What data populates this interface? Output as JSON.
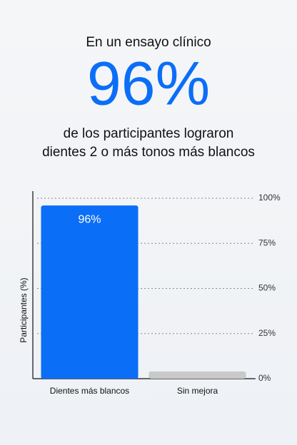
{
  "header": {
    "intro": "En un ensayo clínico",
    "stat": "96%",
    "lines": [
      "de los participantes lograron",
      "dientes 2 o más tonos más blancos"
    ]
  },
  "chart_data": {
    "type": "bar",
    "y_label": "Participantes (%)",
    "categories": [
      "Dientes más blancos",
      "Sin mejora"
    ],
    "values": [
      96,
      4
    ],
    "value_labels": [
      "96%",
      null
    ],
    "colors": [
      "#0b6ef6",
      "#c9c9c9"
    ],
    "ylim": [
      0,
      100
    ],
    "yticks": [
      {
        "value": 0,
        "label": "0%"
      },
      {
        "value": 25,
        "label": "25%"
      },
      {
        "value": 50,
        "label": "50%"
      },
      {
        "value": 75,
        "label": "75%"
      },
      {
        "value": 100,
        "label": "100%"
      }
    ],
    "grid": true
  }
}
